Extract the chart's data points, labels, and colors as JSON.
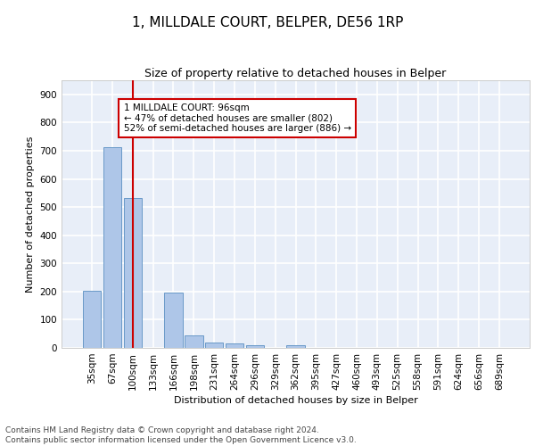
{
  "title1": "1, MILLDALE COURT, BELPER, DE56 1RP",
  "title2": "Size of property relative to detached houses in Belper",
  "xlabel": "Distribution of detached houses by size in Belper",
  "ylabel": "Number of detached properties",
  "categories": [
    "35sqm",
    "67sqm",
    "100sqm",
    "133sqm",
    "166sqm",
    "198sqm",
    "231sqm",
    "264sqm",
    "296sqm",
    "329sqm",
    "362sqm",
    "395sqm",
    "427sqm",
    "460sqm",
    "493sqm",
    "525sqm",
    "558sqm",
    "591sqm",
    "624sqm",
    "656sqm",
    "689sqm"
  ],
  "values": [
    203,
    714,
    533,
    0,
    195,
    43,
    20,
    15,
    10,
    0,
    8,
    0,
    0,
    0,
    0,
    0,
    0,
    0,
    0,
    0,
    0
  ],
  "bar_color": "#aec6e8",
  "bar_edge_color": "#5a8fc2",
  "vline_x_index": 2,
  "vline_color": "#cc0000",
  "annotation_text": "1 MILLDALE COURT: 96sqm\n← 47% of detached houses are smaller (802)\n52% of semi-detached houses are larger (886) →",
  "annotation_box_color": "#ffffff",
  "annotation_box_edge_color": "#cc0000",
  "ylim": [
    0,
    950
  ],
  "yticks": [
    0,
    100,
    200,
    300,
    400,
    500,
    600,
    700,
    800,
    900
  ],
  "footer": "Contains HM Land Registry data © Crown copyright and database right 2024.\nContains public sector information licensed under the Open Government Licence v3.0.",
  "bg_color": "#e8eef8",
  "grid_color": "#ffffff",
  "title1_fontsize": 11,
  "title2_fontsize": 9,
  "axis_label_fontsize": 8,
  "tick_fontsize": 7.5,
  "annotation_fontsize": 7.5,
  "footer_fontsize": 6.5
}
